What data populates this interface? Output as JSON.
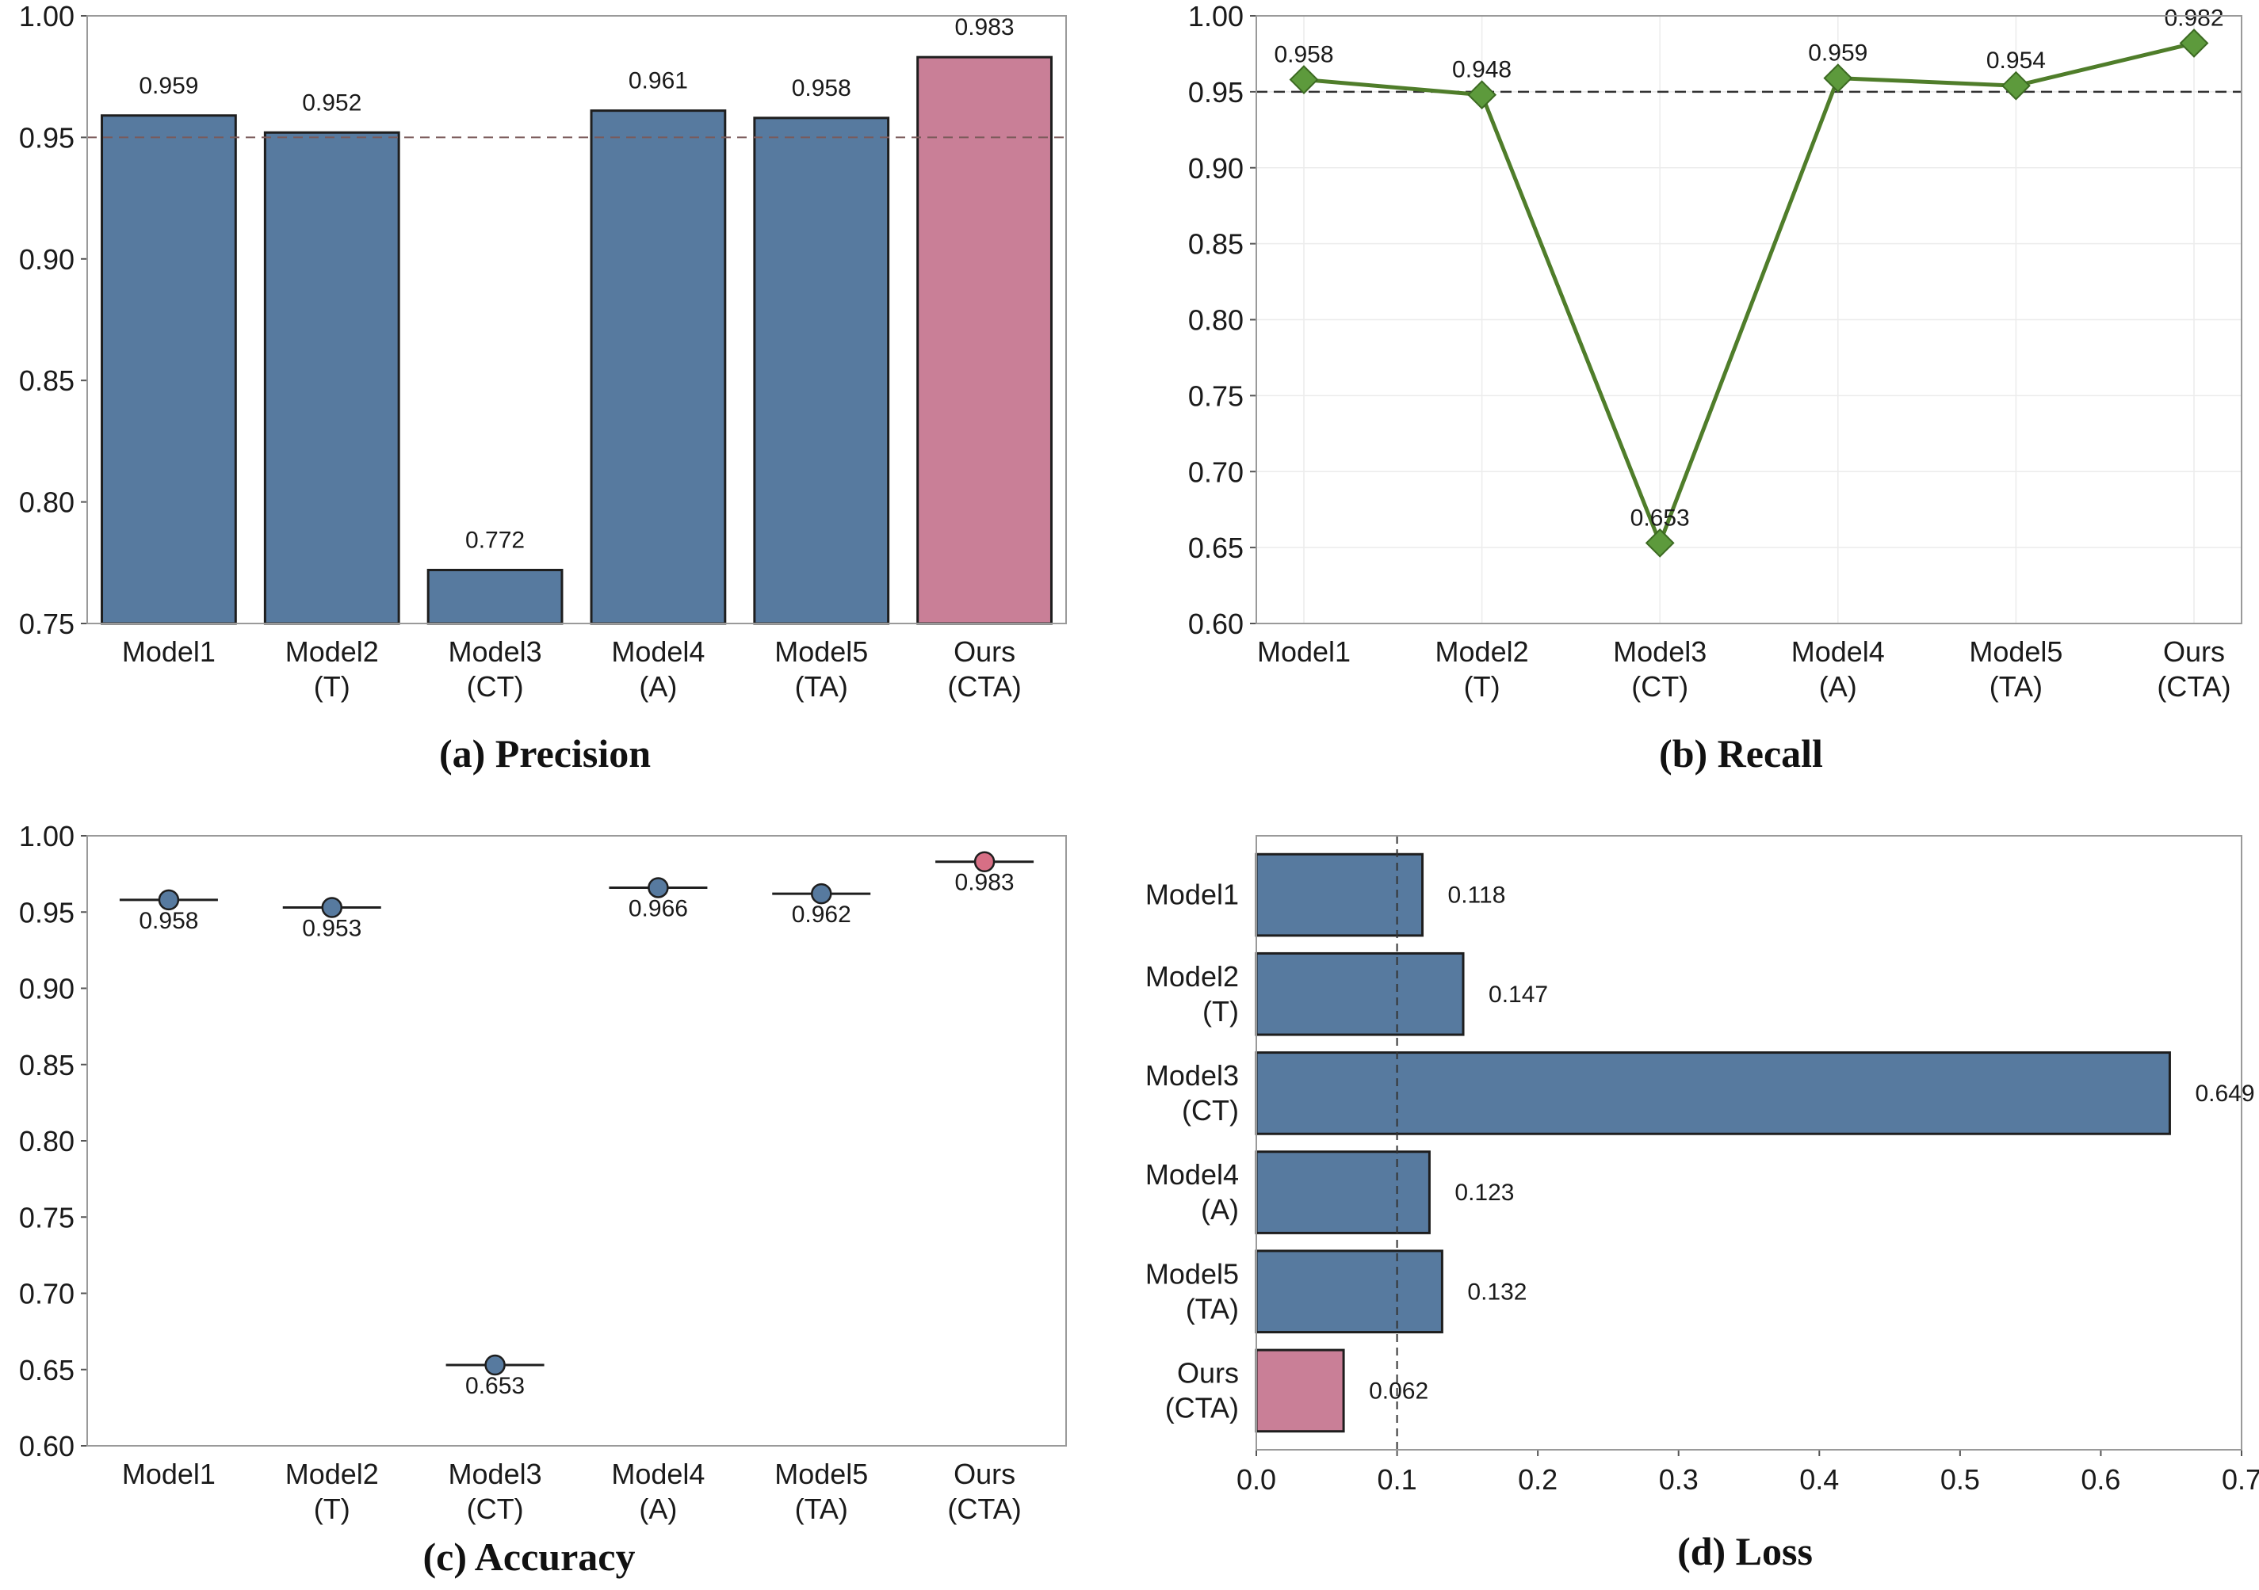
{
  "chart_data": [
    {
      "id": "precision",
      "type": "bar",
      "caption": "(a)  Precision",
      "categories": [
        [
          "Model1"
        ],
        [
          "Model2",
          "(T)"
        ],
        [
          "Model3",
          "(CT)"
        ],
        [
          "Model4",
          "(A)"
        ],
        [
          "Model5",
          "(TA)"
        ],
        [
          "Ours",
          "(CTA)"
        ]
      ],
      "values": [
        0.959,
        0.952,
        0.772,
        0.961,
        0.958,
        0.983
      ],
      "data_labels": [
        "0.959",
        "0.952",
        "0.772",
        "0.961",
        "0.958",
        "0.983"
      ],
      "ylim": [
        0.75,
        1.0
      ],
      "yticks": [
        "0.75",
        "0.80",
        "0.85",
        "0.90",
        "0.95",
        "1.00"
      ],
      "reference_line": 0.95,
      "highlight_index": 5,
      "grid": false
    },
    {
      "id": "recall",
      "type": "line",
      "caption": "(b)  Recall",
      "categories": [
        [
          "Model1"
        ],
        [
          "Model2",
          "(T)"
        ],
        [
          "Model3",
          "(CT)"
        ],
        [
          "Model4",
          "(A)"
        ],
        [
          "Model5",
          "(TA)"
        ],
        [
          "Ours",
          "(CTA)"
        ]
      ],
      "values": [
        0.958,
        0.948,
        0.653,
        0.959,
        0.954,
        0.982
      ],
      "data_labels": [
        "0.958",
        "0.948",
        "0.653",
        "0.959",
        "0.954",
        "0.982"
      ],
      "ylim": [
        0.6,
        1.0
      ],
      "yticks": [
        "0.60",
        "0.65",
        "0.70",
        "0.75",
        "0.80",
        "0.85",
        "0.90",
        "0.95",
        "1.00"
      ],
      "reference_line": 0.95,
      "marker": "diamond",
      "grid": true
    },
    {
      "id": "accuracy",
      "type": "scatter",
      "caption": "(c)  Accuracy",
      "categories": [
        [
          "Model1"
        ],
        [
          "Model2",
          "(T)"
        ],
        [
          "Model3",
          "(CT)"
        ],
        [
          "Model4",
          "(A)"
        ],
        [
          "Model5",
          "(TA)"
        ],
        [
          "Ours",
          "(CTA)"
        ]
      ],
      "values": [
        0.958,
        0.953,
        0.653,
        0.966,
        0.962,
        0.983
      ],
      "data_labels": [
        "0.958",
        "0.953",
        "0.653",
        "0.966",
        "0.962",
        "0.983"
      ],
      "ylim": [
        0.6,
        1.0
      ],
      "yticks": [
        "0.60",
        "0.65",
        "0.70",
        "0.75",
        "0.80",
        "0.85",
        "0.90",
        "0.95",
        "1.00"
      ],
      "highlight_index": 5,
      "grid": false
    },
    {
      "id": "loss",
      "type": "bar",
      "orientation": "horizontal",
      "caption": "(d)  Loss",
      "categories": [
        [
          "Model1"
        ],
        [
          "Model2",
          "(T)"
        ],
        [
          "Model3",
          "(CT)"
        ],
        [
          "Model4",
          "(A)"
        ],
        [
          "Model5",
          "(TA)"
        ],
        [
          "Ours",
          "(CTA)"
        ]
      ],
      "values": [
        0.118,
        0.147,
        0.649,
        0.123,
        0.132,
        0.062
      ],
      "data_labels": [
        "0.118",
        "0.147",
        "0.649",
        "0.123",
        "0.132",
        "0.062"
      ],
      "xlim": [
        0.0,
        0.7
      ],
      "xticks": [
        "0.0",
        "0.1",
        "0.2",
        "0.3",
        "0.4",
        "0.5",
        "0.6",
        "0.7"
      ],
      "reference_line": 0.1,
      "highlight_index": 5,
      "grid": false
    }
  ],
  "colors": {
    "bar": "#577a9f",
    "highlight": "#c97f97",
    "line": "#4f7d2a",
    "marker": "#5d9a3c",
    "dot": "#577a9f",
    "dot_highlight": "#d76f85"
  }
}
